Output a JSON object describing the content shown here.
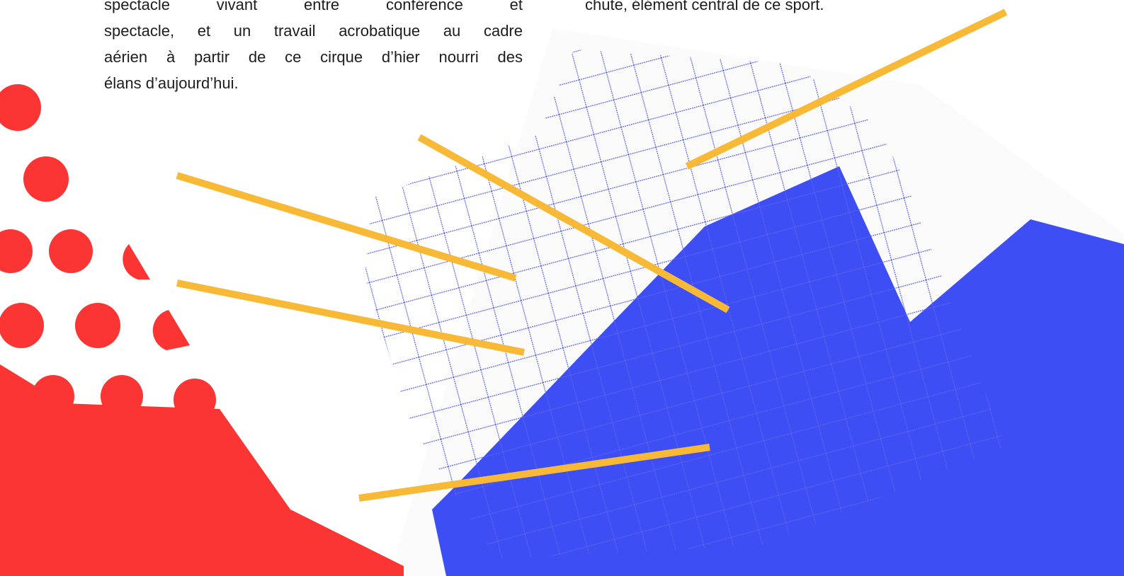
{
  "left_paragraph": {
    "lines": [
      "spectacle vivant entre conférence et",
      "spectacle, et un travail acrobatique au cadre",
      "aérien à partir de ce cirque d’hier nourri des",
      "élans d’aujourd’hui."
    ]
  },
  "right_paragraph": {
    "lines": [
      "chute, élément central de ce sport."
    ]
  }
}
